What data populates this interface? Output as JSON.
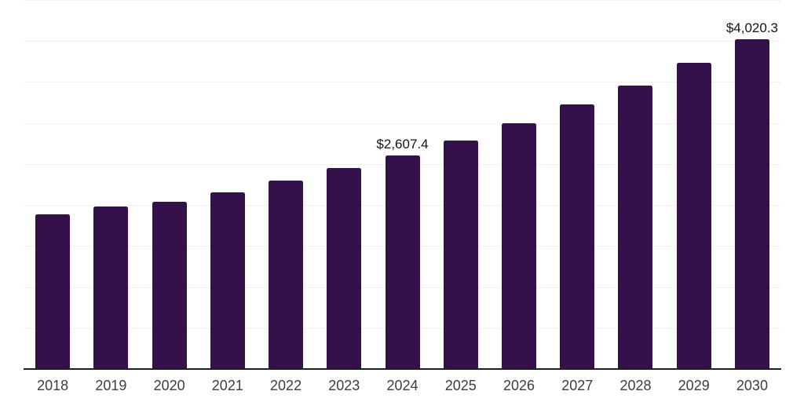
{
  "chart_data": {
    "type": "bar",
    "title": "",
    "xlabel": "",
    "ylabel": "",
    "categories": [
      "2018",
      "2019",
      "2020",
      "2021",
      "2022",
      "2023",
      "2024",
      "2025",
      "2026",
      "2027",
      "2028",
      "2029",
      "2030"
    ],
    "values": [
      1890,
      1985,
      2035,
      2150,
      2295,
      2450,
      2607.4,
      2790,
      3000,
      3225,
      3460,
      3735,
      4020.3
    ],
    "annotations": [
      {
        "index": 6,
        "category": "2024",
        "text": "$2,607.4"
      },
      {
        "index": 12,
        "category": "2030",
        "text": "$4,020.3"
      }
    ],
    "ylim": [
      0,
      4500
    ],
    "gridline_step": 500,
    "grid": "horizontal-only",
    "legend": "none",
    "y_tick_labels": "none",
    "colors": {
      "bar_fill": "#35114c",
      "gridline": "#f2f2f2",
      "axis_line": "#1f1f1f",
      "x_tick_label": "#3d3d3d",
      "annotation_text": "#141414",
      "background": "#ffffff"
    }
  }
}
